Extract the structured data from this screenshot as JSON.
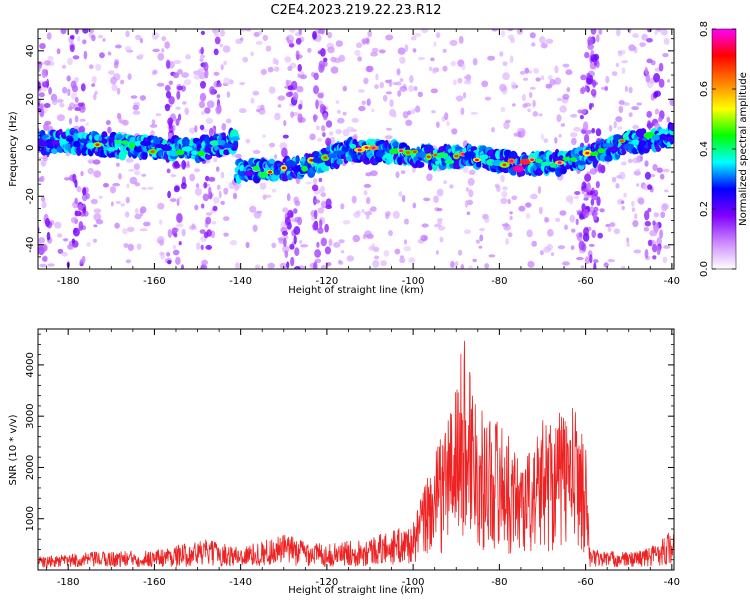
{
  "title": "C2E4.2023.219.22.23.R12",
  "chart_data": [
    {
      "type": "heatmap",
      "xlabel": "Height of straight line (km)",
      "ylabel": "Frequency (Hz)",
      "xlim": [
        -187,
        -39.5
      ],
      "ylim": [
        -50,
        49
      ],
      "xticks": [
        -180,
        -160,
        -140,
        -120,
        -100,
        -80,
        -60,
        -40
      ],
      "yticks": [
        -40,
        -20,
        0,
        20,
        40
      ],
      "colorbar": {
        "label": "Normalized spectral amplitude",
        "range": [
          0,
          0.8
        ],
        "ticks": [
          0.0,
          0.2,
          0.4,
          0.6,
          0.8
        ],
        "colors": [
          "#ffffff",
          "#cc88ff",
          "#8000ff",
          "#0000ff",
          "#00ffff",
          "#00ff00",
          "#ffff00",
          "#ff8000",
          "#ff0000",
          "#ff00ff"
        ]
      },
      "ridge": [
        {
          "x": -187,
          "y": 2,
          "level": 0.35
        },
        {
          "x": -180,
          "y": 3,
          "level": 0.4
        },
        {
          "x": -170,
          "y": 1,
          "level": 0.45
        },
        {
          "x": -160,
          "y": 0,
          "level": 0.4
        },
        {
          "x": -150,
          "y": -1,
          "level": 0.4
        },
        {
          "x": -141,
          "y": 3,
          "level": 0.35
        },
        {
          "x": -141,
          "y": -10,
          "level": 0.3
        },
        {
          "x": -133,
          "y": -9,
          "level": 0.5
        },
        {
          "x": -125,
          "y": -8,
          "level": 0.45
        },
        {
          "x": -115,
          "y": -1,
          "level": 0.45
        },
        {
          "x": -105,
          "y": -2,
          "level": 0.55
        },
        {
          "x": -95,
          "y": -4,
          "level": 0.5
        },
        {
          "x": -85,
          "y": -4,
          "level": 0.55
        },
        {
          "x": -75,
          "y": -7,
          "level": 0.7
        },
        {
          "x": -65,
          "y": -6,
          "level": 0.55
        },
        {
          "x": -60,
          "y": -4,
          "level": 0.5
        },
        {
          "x": -50,
          "y": 2,
          "level": 0.4
        },
        {
          "x": -40,
          "y": 5,
          "level": 0.4
        }
      ]
    },
    {
      "type": "line",
      "xlabel": "Height of straight line (km)",
      "ylabel": "SNR (10 * v/v)",
      "xlim": [
        -187,
        -39.5
      ],
      "ylim": [
        0,
        4700
      ],
      "xticks": [
        -180,
        -160,
        -140,
        -120,
        -100,
        -80,
        -60,
        -40
      ],
      "yticks": [
        1000,
        2000,
        3000,
        4000
      ],
      "color": "#ee2222",
      "envelope": {
        "x": [
          -187,
          -175,
          -160,
          -148,
          -140,
          -130,
          -120,
          -110,
          -100,
          -97,
          -94,
          -90,
          -88,
          -86,
          -84,
          -80,
          -76,
          -72,
          -70,
          -66,
          -62,
          -60,
          -59,
          -50,
          -45,
          -40
        ],
        "y": [
          250,
          350,
          400,
          600,
          450,
          700,
          500,
          650,
          900,
          1800,
          2500,
          3700,
          4700,
          3800,
          3100,
          3000,
          2300,
          2400,
          3000,
          3100,
          3200,
          2500,
          400,
          350,
          450,
          800
        ]
      }
    }
  ]
}
